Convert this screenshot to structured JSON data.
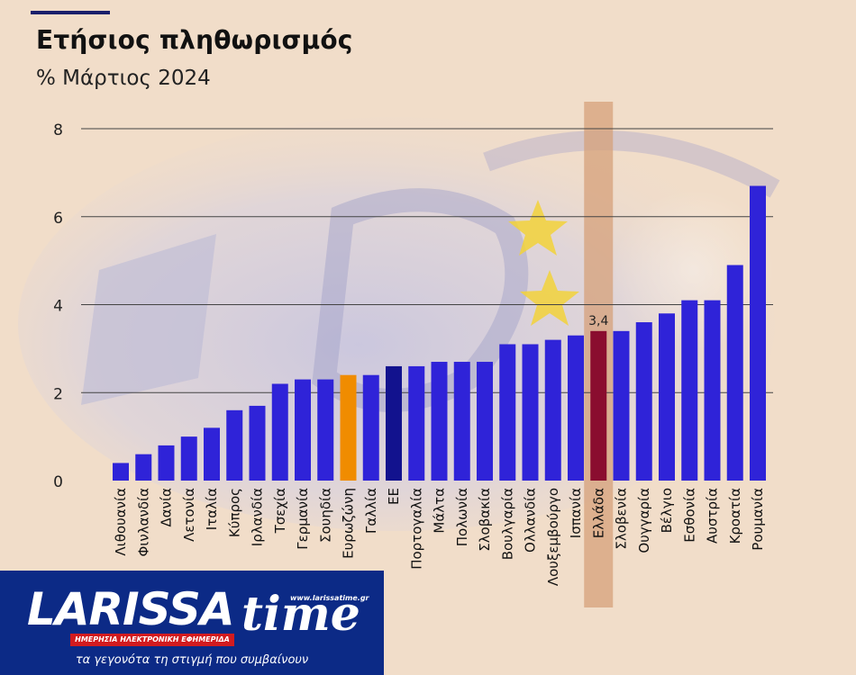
{
  "header": {
    "title": "Ετήσιος πληθωρισμός",
    "subtitle": "% Μάρτιος 2024"
  },
  "colors": {
    "background": "#f1ddc9",
    "bar_default": "#2f23d8",
    "bar_eurozone": "#f08c00",
    "bar_eu": "#12128e",
    "bar_greece": "#8a0d2f",
    "highlight_band": "#d5a07a",
    "gridline": "#444444"
  },
  "chart_data": {
    "type": "bar",
    "title": "Ετήσιος πληθωρισμός",
    "subtitle": "% Μάρτιος 2024",
    "xlabel": "",
    "ylabel": "",
    "ylim": [
      0,
      8
    ],
    "yticks": [
      0,
      2,
      4,
      6,
      8
    ],
    "grid": true,
    "categories": [
      "Λιθουανία",
      "Φινλανδία",
      "Δανία",
      "Λετονία",
      "Ιταλία",
      "Κύπρος",
      "Ιρλανδία",
      "Τσεχία",
      "Γερμανία",
      "Σουηδία",
      "Ευρωζώνη",
      "Γαλλία",
      "ΕΕ",
      "Πορτογαλία",
      "Μάλτα",
      "Πολωνία",
      "Σλοβακία",
      "Βουλγαρία",
      "Ολλανδία",
      "Λουξεμβούργο",
      "Ισπανία",
      "Ελλάδα",
      "Σλοβενία",
      "Ουγγαρία",
      "Βέλγιο",
      "Εσθονία",
      "Αυστρία",
      "Κροατία",
      "Ρουμανία"
    ],
    "values": [
      0.4,
      0.6,
      0.8,
      1.0,
      1.2,
      1.6,
      1.7,
      2.2,
      2.3,
      2.3,
      2.4,
      2.4,
      2.6,
      2.6,
      2.7,
      2.7,
      2.7,
      3.1,
      3.1,
      3.2,
      3.3,
      3.4,
      3.4,
      3.6,
      3.8,
      4.1,
      4.1,
      4.9,
      6.7
    ],
    "highlighted": {
      "Ευρωζώνη": "eurozone",
      "ΕΕ": "eu",
      "Ελλάδα": "greece"
    },
    "data_labels": [
      {
        "category": "Ελλάδα",
        "text": "3,4"
      }
    ]
  },
  "logo": {
    "wordmark": "LARISSA",
    "wordmark_suffix": "time",
    "url": "www.larissatime.gr",
    "strip": "ΗΜΕΡΗΣΙΑ ΗΛΕΚΤΡΟΝΙΚΗ ΕΦΗΜΕΡΙΔΑ",
    "tagline": "τα γεγονότα τη στιγμή που συμβαίνουν"
  }
}
